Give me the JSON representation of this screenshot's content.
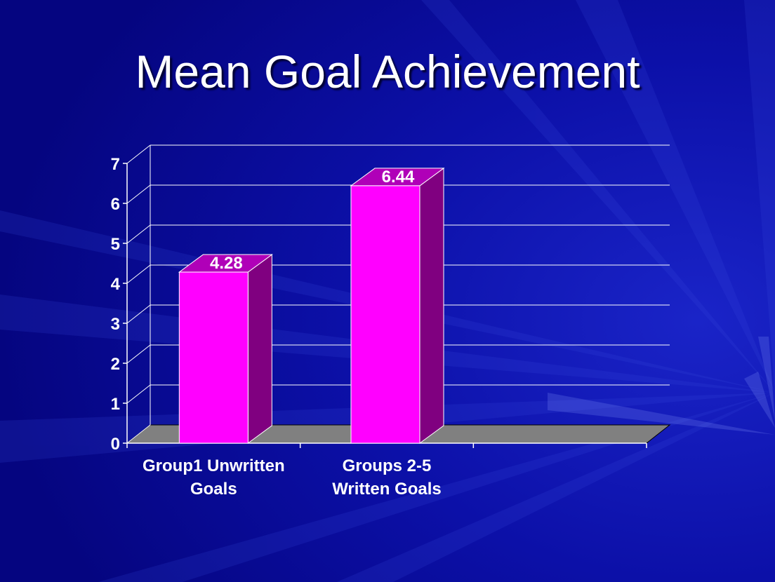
{
  "slide": {
    "title": "Mean Goal Achievement"
  },
  "colors": {
    "background": "#0a0a9a",
    "bar_front": "#ff00ff",
    "bar_side": "#800080",
    "bar_top": "#b000b8",
    "floor": "#808080",
    "grid": "#ffffff",
    "text": "#ffffff"
  },
  "chart_data": {
    "type": "bar",
    "style": "3d-column",
    "categories": [
      [
        "Group1 Unwritten",
        "Goals"
      ],
      [
        "Groups 2-5",
        "Written Goals"
      ]
    ],
    "values": [
      4.28,
      6.44
    ],
    "data_labels": [
      "4.28",
      "6.44"
    ],
    "ylim": [
      0,
      7
    ],
    "yticks": [
      0,
      1,
      2,
      3,
      4,
      5,
      6,
      7
    ],
    "category_slots": 3,
    "grid": true,
    "legend": "none",
    "title": "",
    "xlabel": "",
    "ylabel": ""
  }
}
